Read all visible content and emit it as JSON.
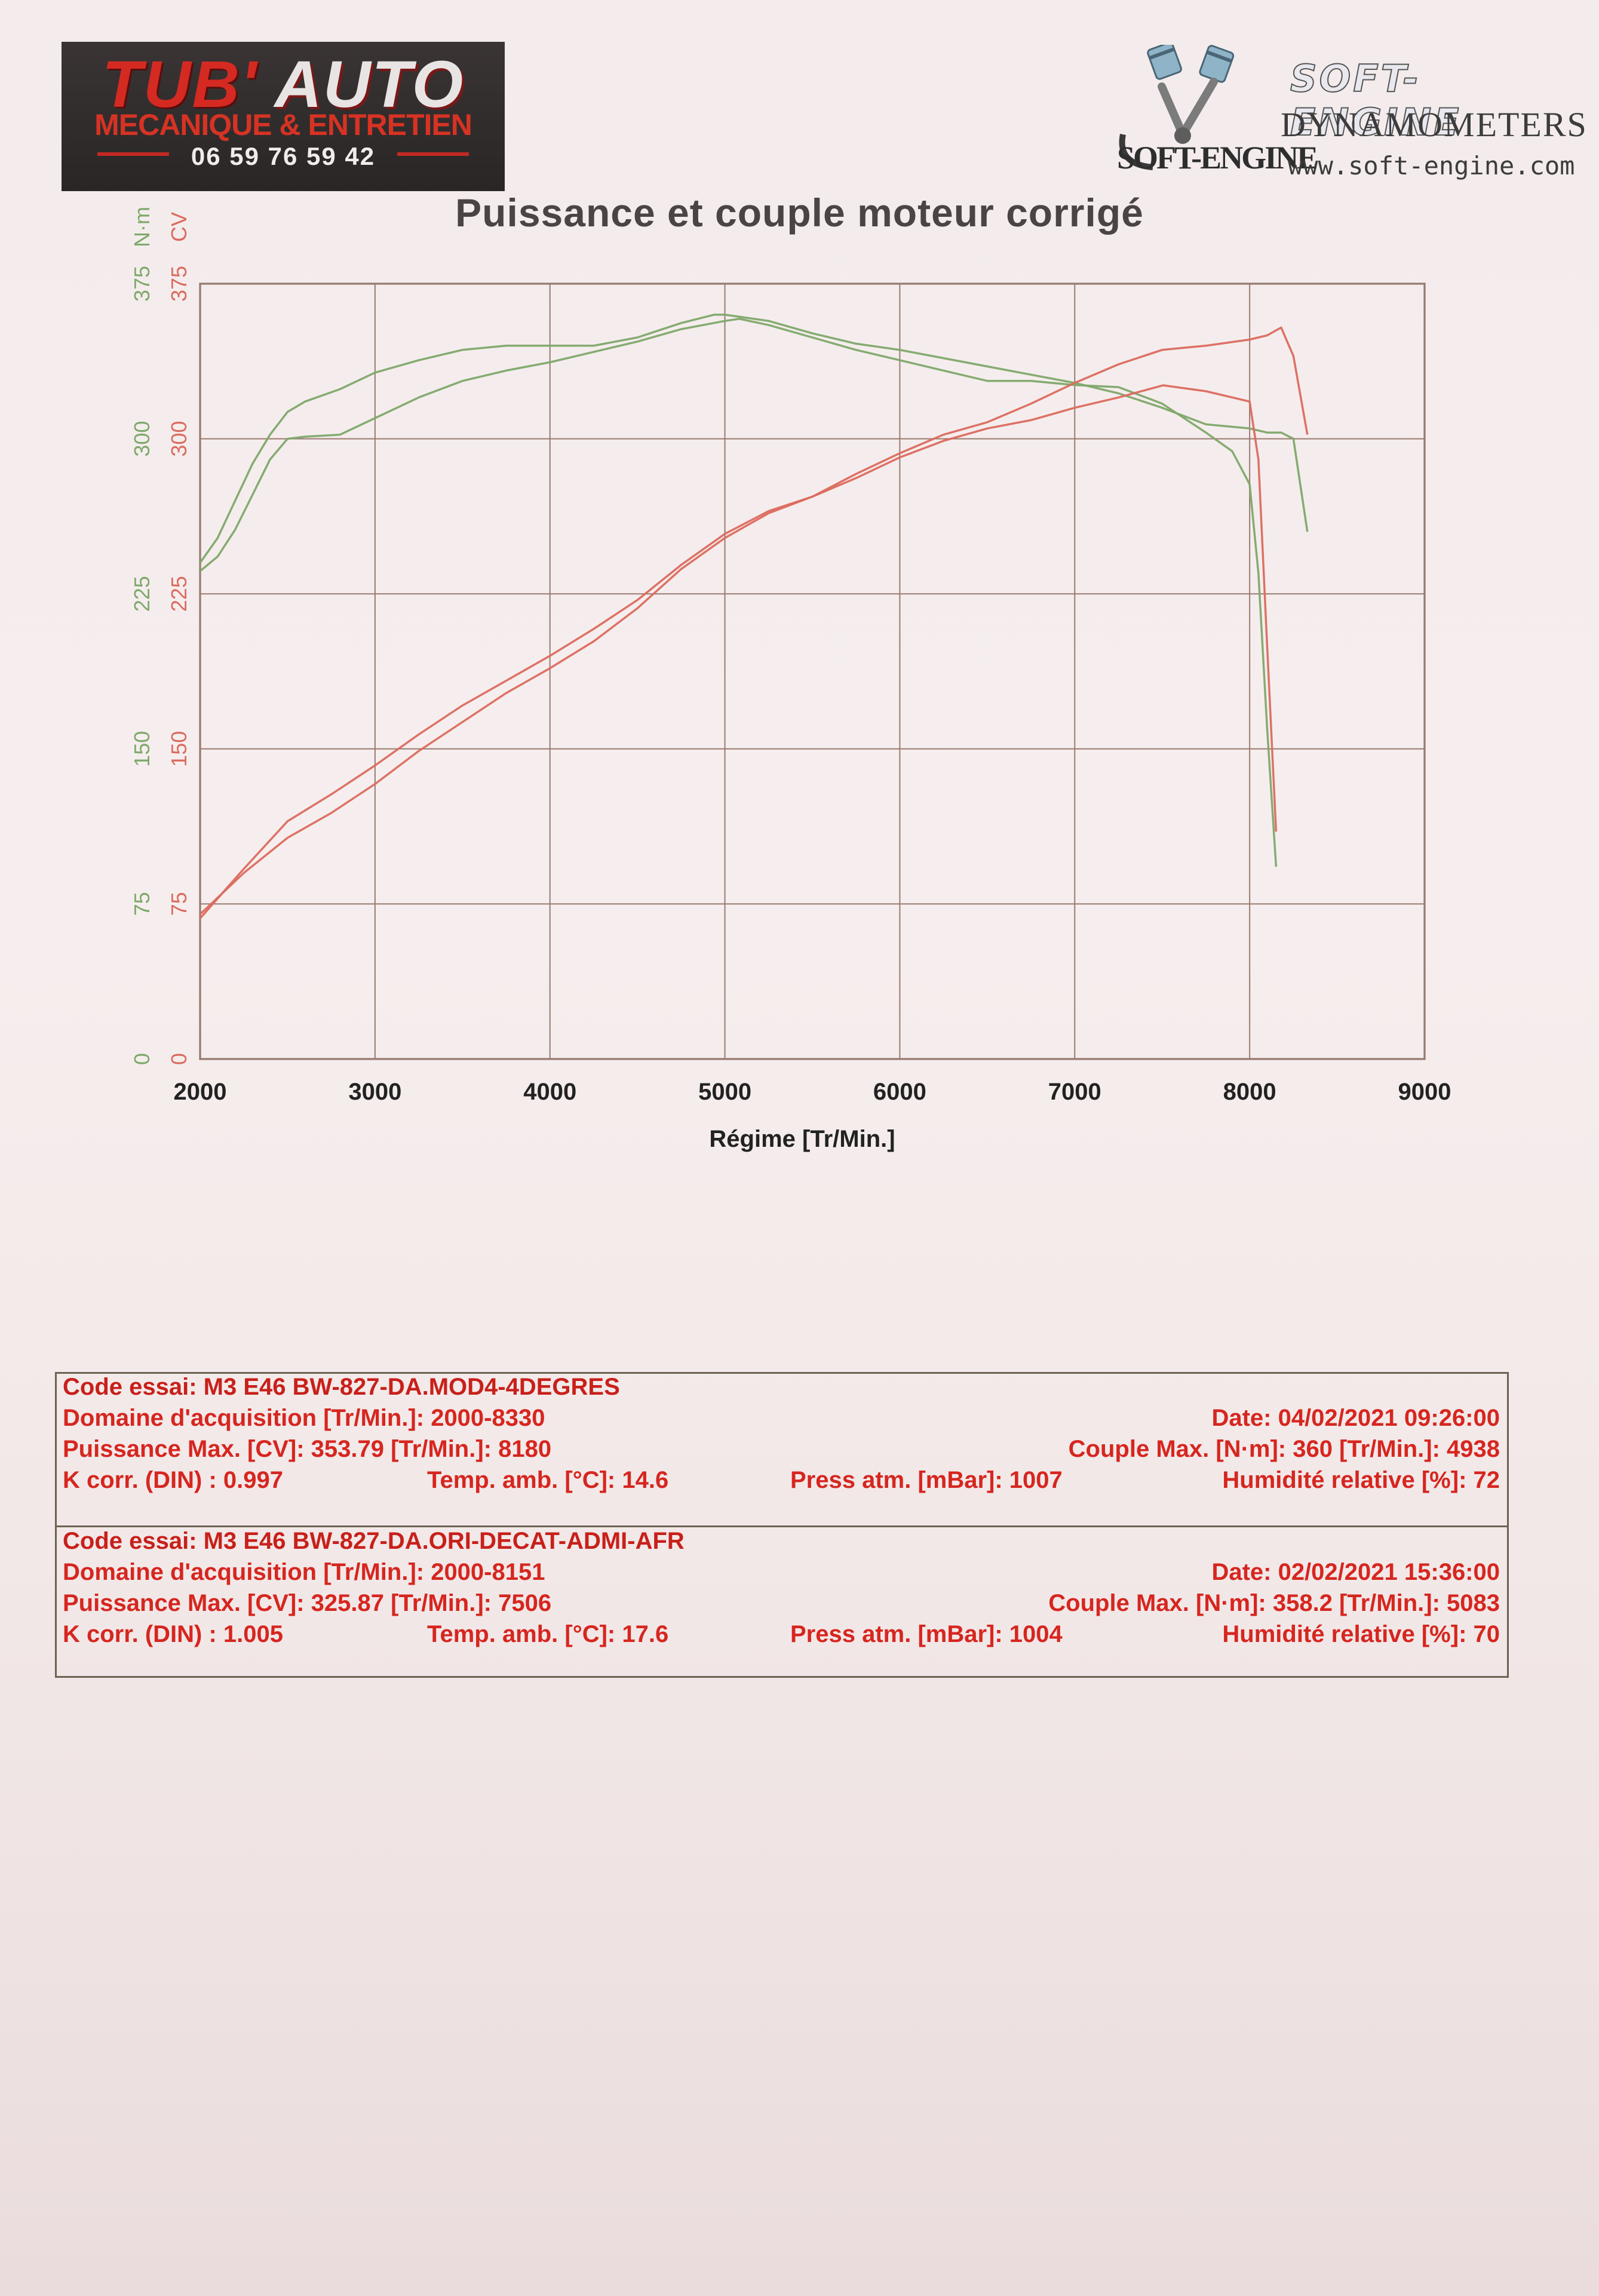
{
  "header": {
    "left_logo": {
      "brand_part1": "TUB'",
      "brand_part2": "AUTO",
      "subtitle": "MECANIQUE & ENTRETIEN",
      "phone": "06 59 76 59 42"
    },
    "right_logo": {
      "name": "SOFT-ENGINE",
      "product": "DYNAMOMETERS",
      "url": "www.soft-engine.com",
      "mark_text": "SOFT-ENGINE"
    }
  },
  "colors": {
    "torque": "#7ea86a",
    "power": "#db6a5e",
    "grid": "#7a5c50",
    "grid_fine": "#9a7a70",
    "label_text": "#222222",
    "report_text": "#d6261f"
  },
  "chart_data": {
    "type": "line",
    "title": "Puissance et couple moteur corrigé",
    "xlabel": "Régime [Tr/Min.]",
    "ylabel_left_torque": "N·m",
    "ylabel_left_power": "CV",
    "xlim": [
      2000,
      9000
    ],
    "xticks": [
      2000,
      3000,
      4000,
      5000,
      6000,
      7000,
      8000,
      9000
    ],
    "ylim": [
      0,
      375
    ],
    "yticks": [
      0,
      75,
      150,
      225,
      300,
      375
    ],
    "grid": true,
    "series": [
      {
        "kind": "torque",
        "unit": "N·m",
        "x": [
          2000,
          2100,
          2200,
          2300,
          2400,
          2500,
          2600,
          2800,
          3000,
          3250,
          3500,
          3750,
          4000,
          4250,
          4500,
          4750,
          4938,
          5000,
          5250,
          5500,
          5750,
          6000,
          6250,
          6500,
          6750,
          7000,
          7250,
          7500,
          7750,
          8000,
          8100,
          8180,
          8250,
          8330
        ],
        "y": [
          240,
          252,
          270,
          288,
          302,
          313,
          318,
          324,
          332,
          338,
          343,
          345,
          345,
          345,
          349,
          356,
          360,
          360,
          357,
          351,
          346,
          343,
          339,
          335,
          331,
          327,
          322,
          315,
          307,
          305,
          303,
          303,
          300,
          255
        ]
      },
      {
        "kind": "torque",
        "unit": "N·m",
        "x": [
          2000,
          2100,
          2200,
          2300,
          2400,
          2500,
          2600,
          2800,
          3000,
          3250,
          3500,
          3750,
          4000,
          4250,
          4500,
          4750,
          5000,
          5083,
          5250,
          5500,
          5750,
          6000,
          6250,
          6500,
          6750,
          7000,
          7250,
          7500,
          7750,
          7900,
          8000,
          8050,
          8100,
          8151
        ],
        "y": [
          236,
          243,
          256,
          273,
          290,
          300,
          301,
          302,
          310,
          320,
          328,
          333,
          337,
          342,
          347,
          353,
          357,
          358,
          355,
          349,
          343,
          338,
          333,
          328,
          328,
          326,
          325,
          317,
          303,
          294,
          278,
          235,
          160,
          93
        ]
      },
      {
        "kind": "power",
        "unit": "CV",
        "x": [
          2000,
          2250,
          2500,
          2750,
          3000,
          3250,
          3500,
          3750,
          4000,
          4250,
          4500,
          4750,
          5000,
          5250,
          5500,
          5750,
          6000,
          6250,
          6500,
          6750,
          7000,
          7250,
          7500,
          7750,
          8000,
          8100,
          8180,
          8250,
          8330
        ],
        "y": [
          68,
          92,
          115,
          128,
          142,
          157,
          171,
          183,
          195,
          208,
          222,
          239,
          254,
          265,
          272,
          283,
          293,
          302,
          308,
          317,
          327,
          336,
          343,
          345,
          348,
          350,
          353.79,
          340,
          302
        ]
      },
      {
        "kind": "power",
        "unit": "CV",
        "x": [
          2000,
          2250,
          2500,
          2750,
          3000,
          3250,
          3500,
          3750,
          4000,
          4250,
          4500,
          4750,
          5000,
          5250,
          5500,
          5750,
          6000,
          6250,
          6500,
          6750,
          7000,
          7250,
          7506,
          7750,
          8000,
          8050,
          8100,
          8151
        ],
        "y": [
          70,
          90,
          107,
          119,
          133,
          149,
          163,
          177,
          189,
          202,
          218,
          237,
          252,
          264,
          272,
          281,
          291,
          299,
          305,
          309,
          315,
          320,
          325.87,
          323,
          318,
          290,
          200,
          110
        ]
      }
    ]
  },
  "report": {
    "test1": {
      "code": "Code essai: M3 E46 BW-827-DA.MOD4-4DEGRES",
      "domaine": "Domaine d'acquisition [Tr/Min.]: 2000-8330",
      "date": "Date: 04/02/2021   09:26:00",
      "puissance": "Puissance Max. [CV]: 353.79   [Tr/Min.]: 8180",
      "couple": "Couple Max. [N·m]: 360   [Tr/Min.]: 4938",
      "kcorr": "K corr. (DIN) : 0.997",
      "temp": "Temp. amb. [°C]: 14.6",
      "press": "Press atm. [mBar]: 1007",
      "humid": "Humidité relative [%]: 72"
    },
    "test2": {
      "code": "Code essai: M3 E46 BW-827-DA.ORI-DECAT-ADMI-AFR",
      "domaine": "Domaine d'acquisition [Tr/Min.]: 2000-8151",
      "date": "Date: 02/02/2021   15:36:00",
      "puissance": "Puissance Max. [CV]: 325.87   [Tr/Min.]: 7506",
      "couple": "Couple Max. [N·m]: 358.2   [Tr/Min.]: 5083",
      "kcorr": "K corr. (DIN) : 1.005",
      "temp": "Temp. amb. [°C]: 17.6",
      "press": "Press atm. [mBar]: 1004",
      "humid": "Humidité relative [%]: 70"
    }
  }
}
